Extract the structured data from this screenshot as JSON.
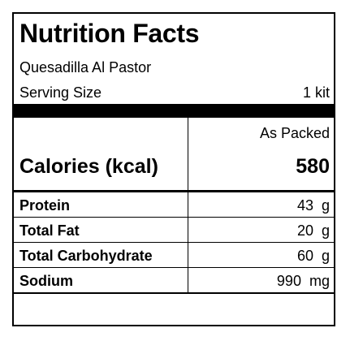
{
  "label": {
    "title": "Nutrition Facts",
    "product_name": "Quesadilla Al Pastor",
    "serving_size_label": "Serving Size",
    "serving_size_value": "1 kit",
    "column_header": "As Packed",
    "calories_label": "Calories (kcal)",
    "calories_value": "580",
    "nutrients": [
      {
        "name": "Protein",
        "amount": "43",
        "unit": "g"
      },
      {
        "name": "Total Fat",
        "amount": "20",
        "unit": "g"
      },
      {
        "name": "Total Carbohydrate",
        "amount": "60",
        "unit": "g"
      },
      {
        "name": "Sodium",
        "amount": "990",
        "unit": "mg"
      }
    ]
  }
}
